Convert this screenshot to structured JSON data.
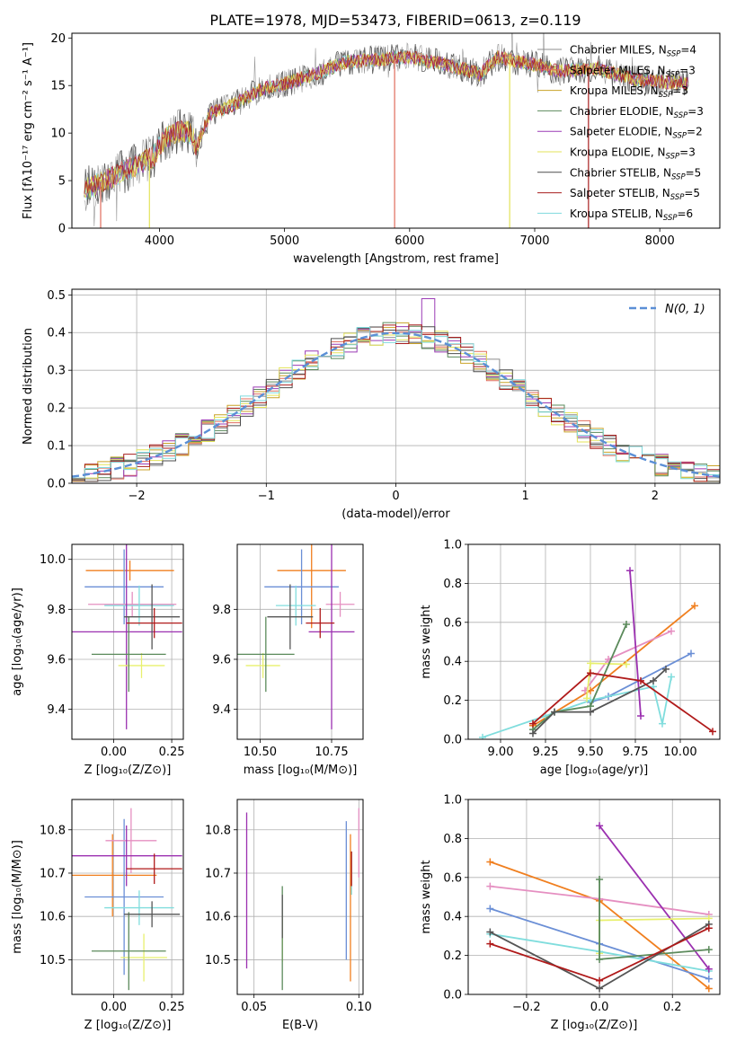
{
  "figure_title": "PLATE=1978, MJD=53473, FIBERID=0613, z=0.119",
  "colors": {
    "series": [
      "#8c8c8c",
      "#e06c5c",
      "#c9a227",
      "#5b8a5b",
      "#9b3bb5",
      "#e3e35a",
      "#4d4d4d",
      "#a81e1e",
      "#7fd9dd"
    ],
    "scatter": [
      "#f07f1f",
      "#6b8fd6",
      "#e58fc1",
      "#80dddd",
      "#9b30b0",
      "#e8f06e",
      "#5b8a5b",
      "#555555",
      "#b01a1a"
    ],
    "gauss": "#5b8fd6",
    "grid": "#b0b0b0"
  },
  "chart_data": [
    {
      "id": "spectrum",
      "type": "line",
      "xlabel": "wavelength [Angstrom, rest frame]",
      "ylabel": "Flux [fλ10⁻¹⁷ erg cm⁻² s⁻¹ A⁻¹]",
      "xlim": [
        3300,
        8480
      ],
      "ylim": [
        0,
        20.5
      ],
      "xticks": [
        4000,
        5000,
        6000,
        7000,
        8000
      ],
      "yticks": [
        0,
        5,
        10,
        15,
        20
      ],
      "grid": false,
      "legend_position": "right",
      "legend": [
        "Chabrier MILES, N_SSP=4",
        "Salpeter MILES, N_SSP=3",
        "Kroupa MILES, N_SSP=3",
        "Chabrier ELODIE, N_SSP=3",
        "Salpeter ELODIE, N_SSP=2",
        "Kroupa ELODIE, N_SSP=3",
        "Chabrier STELIB, N_SSP=5",
        "Salpeter STELIB, N_SSP=5",
        "Kroupa STELIB, N_SSP=6"
      ],
      "legend_parts": [
        [
          "Chabrier MILES, N",
          "SSP",
          "=4"
        ],
        [
          "Salpeter MILES, N",
          "SSP",
          "=3"
        ],
        [
          "Kroupa MILES, N",
          "SSP",
          "=3"
        ],
        [
          "Chabrier ELODIE, N",
          "SSP",
          "=3"
        ],
        [
          "Salpeter ELODIE, N",
          "SSP",
          "=2"
        ],
        [
          "Kroupa ELODIE, N",
          "SSP",
          "=3"
        ],
        [
          "Chabrier STELIB, N",
          "SSP",
          "=5"
        ],
        [
          "Salpeter STELIB, N",
          "SSP",
          "=5"
        ],
        [
          "Kroupa STELIB, N",
          "SSP",
          "=6"
        ]
      ],
      "x_range": [
        3400,
        8230
      ],
      "shape": [
        [
          3400,
          4.0
        ],
        [
          3500,
          4.6
        ],
        [
          3650,
          5.5
        ],
        [
          3800,
          6.5
        ],
        [
          3950,
          7.5
        ],
        [
          4050,
          9.5
        ],
        [
          4150,
          10.2
        ],
        [
          4250,
          10.0
        ],
        [
          4300,
          8.6
        ],
        [
          4400,
          12.0
        ],
        [
          4600,
          13.0
        ],
        [
          4800,
          14.5
        ],
        [
          5000,
          15.2
        ],
        [
          5200,
          16.0
        ],
        [
          5500,
          17.5
        ],
        [
          5800,
          17.8
        ],
        [
          6000,
          18.0
        ],
        [
          6300,
          17.2
        ],
        [
          6565,
          16.2
        ],
        [
          6700,
          18.0
        ],
        [
          7000,
          17.2
        ],
        [
          7200,
          16.5
        ],
        [
          7500,
          16.8
        ],
        [
          7800,
          15.6
        ],
        [
          8000,
          15.4
        ],
        [
          8230,
          15.2
        ]
      ]
    },
    {
      "id": "residuals",
      "type": "line",
      "xlabel": "(data-model)/error",
      "ylabel": "Normed distribution",
      "xlim": [
        -2.5,
        2.5
      ],
      "ylim": [
        0,
        0.515
      ],
      "xticks": [
        -2,
        -1,
        0,
        1,
        2
      ],
      "yticks": [
        0.0,
        0.1,
        0.2,
        0.3,
        0.4,
        0.5
      ],
      "grid": true,
      "legend_position": "top-right",
      "gauss_label": "N(0, 1)",
      "bin_width": 0.1
    },
    {
      "id": "age_vs_Z",
      "type": "scatter",
      "xlabel": "Z [log₁₀(Z/Z⊙)]",
      "ylabel": "age  [log₁₀(age/yr)]",
      "xlim": [
        -0.18,
        0.3
      ],
      "ylim": [
        9.28,
        10.06
      ],
      "xticks": [
        0.0,
        0.25
      ],
      "yticks": [
        9.4,
        9.6,
        9.8,
        10.0
      ],
      "grid": true,
      "points": [
        {
          "x": 0.07,
          "y": 9.955,
          "xerr": 0.19,
          "yerr": 0.04
        },
        {
          "x": 0.045,
          "y": 9.89,
          "xerr": 0.17,
          "yerr": 0.15
        },
        {
          "x": 0.08,
          "y": 9.82,
          "xerr": 0.19,
          "yerr": 0.05
        },
        {
          "x": 0.11,
          "y": 9.815,
          "xerr": 0.15,
          "yerr": 0.08
        },
        {
          "x": 0.055,
          "y": 9.71,
          "xerr": 0.24,
          "yerr": 0.39
        },
        {
          "x": 0.12,
          "y": 9.575,
          "xerr": 0.1,
          "yerr": 0.05
        },
        {
          "x": 0.065,
          "y": 9.62,
          "xerr": 0.16,
          "yerr": 0.15
        },
        {
          "x": 0.165,
          "y": 9.77,
          "xerr": 0.12,
          "yerr": 0.13
        },
        {
          "x": 0.175,
          "y": 9.745,
          "xerr": 0.12,
          "yerr": 0.06
        }
      ]
    },
    {
      "id": "age_vs_mass",
      "type": "scatter",
      "xlabel": "mass [log₁₀(M/M⊙)]",
      "ylabel": "",
      "xlim": [
        10.42,
        10.86
      ],
      "ylim": [
        9.28,
        10.06
      ],
      "xticks": [
        10.5,
        10.75
      ],
      "yticks": [
        9.4,
        9.6,
        9.8
      ],
      "grid": true,
      "points": [
        {
          "x": 10.68,
          "y": 9.955,
          "xerr": 0.12,
          "yerr": 0.23
        },
        {
          "x": 10.645,
          "y": 9.89,
          "xerr": 0.13,
          "yerr": 0.15
        },
        {
          "x": 10.78,
          "y": 9.82,
          "xerr": 0.05,
          "yerr": 0.05
        },
        {
          "x": 10.625,
          "y": 9.815,
          "xerr": 0.07,
          "yerr": 0.08
        },
        {
          "x": 10.75,
          "y": 9.71,
          "xerr": 0.08,
          "yerr": 0.39
        },
        {
          "x": 10.51,
          "y": 9.575,
          "xerr": 0.06,
          "yerr": 0.05
        },
        {
          "x": 10.52,
          "y": 9.62,
          "xerr": 0.1,
          "yerr": 0.15
        },
        {
          "x": 10.605,
          "y": 9.77,
          "xerr": 0.08,
          "yerr": 0.13
        },
        {
          "x": 10.71,
          "y": 9.745,
          "xerr": 0.05,
          "yerr": 0.06
        }
      ]
    },
    {
      "id": "mass_weight_vs_age",
      "type": "line",
      "xlabel": "age  [log₁₀(age/yr)]",
      "ylabel": "mass weight",
      "xlim": [
        8.82,
        10.22
      ],
      "ylim": [
        0.0,
        1.0
      ],
      "xticks": [
        9.0,
        9.25,
        9.5,
        9.75,
        10.0
      ],
      "yticks": [
        0.0,
        0.2,
        0.4,
        0.6,
        0.8,
        1.0
      ],
      "grid": true,
      "series": [
        {
          "x": [
            9.18,
            9.5,
            10.08
          ],
          "y": [
            0.07,
            0.25,
            0.685
          ]
        },
        {
          "x": [
            9.5,
            9.6,
            10.06
          ],
          "y": [
            0.19,
            0.22,
            0.44
          ]
        },
        {
          "x": [
            9.47,
            9.6,
            9.95
          ],
          "y": [
            0.25,
            0.41,
            0.555
          ]
        },
        {
          "x": [
            8.9,
            9.25,
            9.5,
            9.85,
            9.9,
            9.95
          ],
          "y": [
            0.01,
            0.12,
            0.2,
            0.27,
            0.08,
            0.32
          ]
        },
        {
          "x": [
            9.72,
            9.78
          ],
          "y": [
            0.865,
            0.12
          ]
        },
        {
          "x": [
            9.48,
            9.5,
            9.7
          ],
          "y": [
            0.21,
            0.39,
            0.385
          ]
        },
        {
          "x": [
            9.18,
            9.3,
            9.5,
            9.7
          ],
          "y": [
            0.05,
            0.14,
            0.17,
            0.59
          ]
        },
        {
          "x": [
            9.18,
            9.3,
            9.5,
            9.85,
            9.92
          ],
          "y": [
            0.03,
            0.14,
            0.14,
            0.3,
            0.36
          ]
        },
        {
          "x": [
            9.18,
            9.5,
            9.78,
            10.18
          ],
          "y": [
            0.08,
            0.34,
            0.3,
            0.04
          ]
        }
      ]
    },
    {
      "id": "mass_vs_Z",
      "type": "scatter",
      "xlabel": "Z [log₁₀(Z/Z⊙)]",
      "ylabel": "mass [log₁₀(M/M⊙)]",
      "xlim": [
        -0.18,
        0.3
      ],
      "ylim": [
        10.42,
        10.87
      ],
      "xticks": [
        0.0,
        0.25
      ],
      "yticks": [
        10.5,
        10.6,
        10.7,
        10.8
      ],
      "grid": true,
      "points": [
        {
          "x": -0.005,
          "y": 10.695,
          "xerr": 0.19,
          "yerr": 0.095
        },
        {
          "x": 0.045,
          "y": 10.645,
          "xerr": 0.17,
          "yerr": 0.18
        },
        {
          "x": 0.075,
          "y": 10.775,
          "xerr": 0.11,
          "yerr": 0.075
        },
        {
          "x": 0.11,
          "y": 10.62,
          "xerr": 0.15,
          "yerr": 0.04
        },
        {
          "x": 0.055,
          "y": 10.74,
          "xerr": 0.24,
          "yerr": 0.07
        },
        {
          "x": 0.13,
          "y": 10.505,
          "xerr": 0.1,
          "yerr": 0.055
        },
        {
          "x": 0.065,
          "y": 10.52,
          "xerr": 0.16,
          "yerr": 0.09
        },
        {
          "x": 0.165,
          "y": 10.605,
          "xerr": 0.12,
          "yerr": 0.03
        },
        {
          "x": 0.175,
          "y": 10.71,
          "xerr": 0.12,
          "yerr": 0.035
        }
      ]
    },
    {
      "id": "mass_vs_EBV",
      "type": "scatter",
      "xlabel": "E(B-V)",
      "ylabel": "",
      "xlim": [
        0.042,
        0.102
      ],
      "ylim": [
        10.42,
        10.87
      ],
      "xticks": [
        0.05,
        0.1
      ],
      "yticks": [
        10.5,
        10.6,
        10.7,
        10.8
      ],
      "grid": true,
      "points": [
        {
          "x": 0.096,
          "y": 10.62,
          "yerr": 0.17
        },
        {
          "x": 0.094,
          "y": 10.66,
          "yerr": 0.16
        },
        {
          "x": 0.1,
          "y": 10.77,
          "yerr": 0.08
        },
        {
          "x": 0.0965,
          "y": 10.7,
          "yerr": 0.05
        },
        {
          "x": 0.0465,
          "y": 10.66,
          "yerr": 0.18
        },
        {
          "x": 0.0635,
          "y": 10.545,
          "yerr": 0.05
        },
        {
          "x": 0.0635,
          "y": 10.55,
          "yerr": 0.12
        },
        {
          "x": 0.0635,
          "y": 10.6,
          "yerr": 0.05
        },
        {
          "x": 0.0965,
          "y": 10.71,
          "yerr": 0.04
        }
      ]
    },
    {
      "id": "mass_weight_vs_Z",
      "type": "line",
      "xlabel": "Z [log₁₀(Z/Z⊙)]",
      "ylabel": "mass weight",
      "xlim": [
        -0.36,
        0.33
      ],
      "ylim": [
        0.0,
        1.0
      ],
      "xticks": [
        -0.2,
        0.0,
        0.2
      ],
      "yticks": [
        0.0,
        0.2,
        0.4,
        0.6,
        0.8,
        1.0
      ],
      "grid": true,
      "series": [
        {
          "x": [
            -0.3,
            0.0,
            0.3
          ],
          "y": [
            0.68,
            0.48,
            0.03
          ]
        },
        {
          "x": [
            -0.3,
            0.0,
            0.3
          ],
          "y": [
            0.44,
            0.26,
            0.08
          ]
        },
        {
          "x": [
            -0.3,
            0.0,
            0.3
          ],
          "y": [
            0.555,
            0.49,
            0.41
          ]
        },
        {
          "x": [
            -0.3,
            0.0,
            0.3
          ],
          "y": [
            0.31,
            0.22,
            0.12
          ]
        },
        {
          "x": [
            0.0,
            0.3
          ],
          "y": [
            0.865,
            0.13
          ]
        },
        {
          "x": [
            0.0,
            0.0,
            0.3
          ],
          "y": [
            0.21,
            0.38,
            0.39
          ]
        },
        {
          "x": [
            0.0,
            0.0,
            0.3
          ],
          "y": [
            0.59,
            0.18,
            0.23
          ]
        },
        {
          "x": [
            -0.3,
            0.0,
            0.3
          ],
          "y": [
            0.32,
            0.03,
            0.36
          ]
        },
        {
          "x": [
            -0.3,
            0.0,
            0.3
          ],
          "y": [
            0.26,
            0.07,
            0.34
          ]
        }
      ]
    }
  ]
}
